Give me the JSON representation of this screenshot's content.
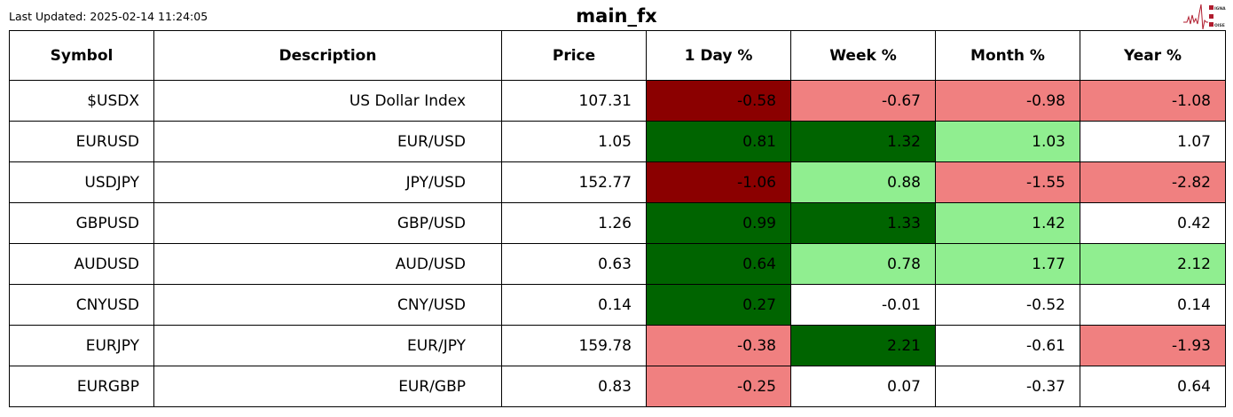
{
  "header": {
    "last_updated": "Last Updated: 2025-02-14 11:24:05",
    "title": "main_fx",
    "logo_text": "SIGNAL 2 NOISE"
  },
  "colors": {
    "strong_negative": "#8b0000",
    "negative": "#f08080",
    "strong_positive": "#006400",
    "positive": "#90ee90",
    "neutral": "#ffffff"
  },
  "chart_data": {
    "type": "table",
    "columns": [
      "Symbol",
      "Description",
      "Price",
      "1 Day %",
      "Week %",
      "Month %",
      "Year %"
    ],
    "rows": [
      {
        "symbol": "$USDX",
        "description": "US Dollar Index",
        "price": "107.31",
        "changes": [
          "-0.58",
          "-0.67",
          "-0.98",
          "-1.08"
        ],
        "shades": [
          "strong_negative",
          "negative",
          "negative",
          "negative"
        ]
      },
      {
        "symbol": "EURUSD",
        "description": "EUR/USD",
        "price": "1.05",
        "changes": [
          "0.81",
          "1.32",
          "1.03",
          "1.07"
        ],
        "shades": [
          "strong_positive",
          "strong_positive",
          "positive",
          "neutral"
        ]
      },
      {
        "symbol": "USDJPY",
        "description": "JPY/USD",
        "price": "152.77",
        "changes": [
          "-1.06",
          "0.88",
          "-1.55",
          "-2.82"
        ],
        "shades": [
          "strong_negative",
          "positive",
          "negative",
          "negative"
        ]
      },
      {
        "symbol": "GBPUSD",
        "description": "GBP/USD",
        "price": "1.26",
        "changes": [
          "0.99",
          "1.33",
          "1.42",
          "0.42"
        ],
        "shades": [
          "strong_positive",
          "strong_positive",
          "positive",
          "neutral"
        ]
      },
      {
        "symbol": "AUDUSD",
        "description": "AUD/USD",
        "price": "0.63",
        "changes": [
          "0.64",
          "0.78",
          "1.77",
          "2.12"
        ],
        "shades": [
          "strong_positive",
          "positive",
          "positive",
          "positive"
        ]
      },
      {
        "symbol": "CNYUSD",
        "description": "CNY/USD",
        "price": "0.14",
        "changes": [
          "0.27",
          "-0.01",
          "-0.52",
          "0.14"
        ],
        "shades": [
          "strong_positive",
          "neutral",
          "neutral",
          "neutral"
        ]
      },
      {
        "symbol": "EURJPY",
        "description": "EUR/JPY",
        "price": "159.78",
        "changes": [
          "-0.38",
          "2.21",
          "-0.61",
          "-1.93"
        ],
        "shades": [
          "negative",
          "strong_positive",
          "neutral",
          "negative"
        ]
      },
      {
        "symbol": "EURGBP",
        "description": "EUR/GBP",
        "price": "0.83",
        "changes": [
          "-0.25",
          "0.07",
          "-0.37",
          "0.64"
        ],
        "shades": [
          "negative",
          "neutral",
          "neutral",
          "neutral"
        ]
      }
    ]
  }
}
